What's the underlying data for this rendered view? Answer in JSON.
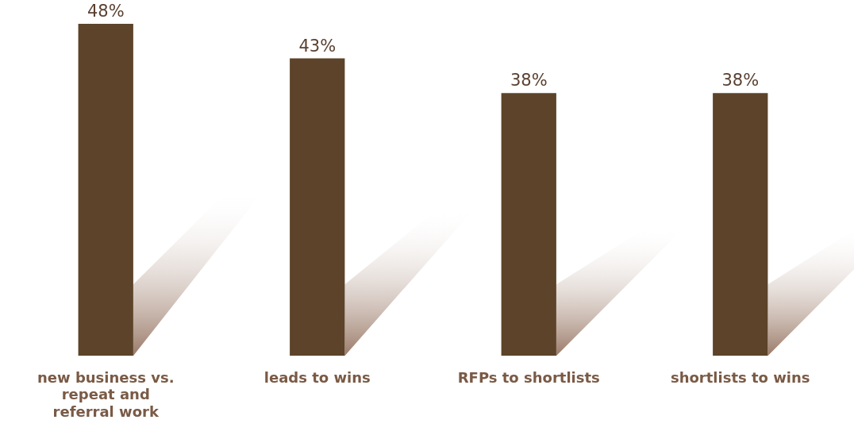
{
  "chart_data": {
    "type": "bar",
    "categories": [
      "new business vs. repeat and referral work",
      "leads to wins",
      "RFPs to shortlists",
      "shortlists to wins"
    ],
    "values": [
      48,
      43,
      38,
      38
    ],
    "value_labels": [
      "48%",
      "43%",
      "38%",
      "38%"
    ],
    "color": "#5c4329",
    "grid": false,
    "legend": false,
    "tick_labels": "x"
  }
}
